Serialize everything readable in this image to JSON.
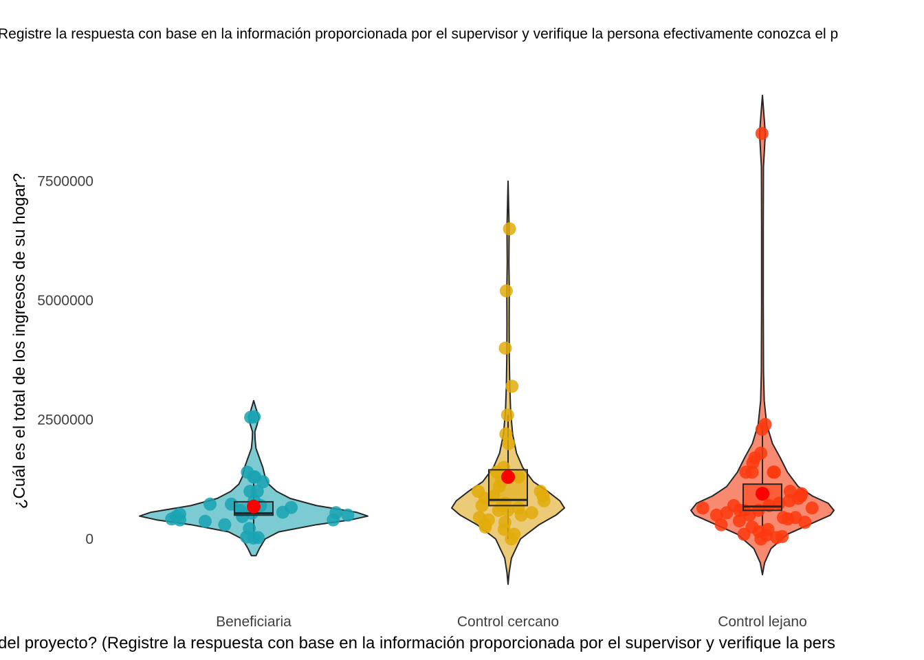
{
  "chart_data": {
    "type": "violin",
    "title": "Registre la respuesta con base en la información proporcionada por el supervisor y verifique la persona efectivamente conozca el p",
    "xlabel": "del proyecto? (Registre la respuesta con base en la información proporcionada por el supervisor y verifique la pers",
    "ylabel": "¿Cuál es el total de los ingresos de su hogar?",
    "ylim": [
      -1000000,
      9300000
    ],
    "y_ticks": [
      {
        "value": 0,
        "label": "0"
      },
      {
        "value": 2500000,
        "label": "2500000"
      },
      {
        "value": 5000000,
        "label": "5000000"
      },
      {
        "value": 7500000,
        "label": "7500000"
      }
    ],
    "grid": false,
    "legend": "none",
    "categories": [
      "Beneficiaria",
      "Control cercano",
      "Control lejano"
    ],
    "groups": [
      {
        "name": "Beneficiaria",
        "fill": "#7ccbd3",
        "point_color": "#1aa3b3",
        "mean": 680000,
        "box": {
          "q1": 500000,
          "median": 540000,
          "q3": 780000,
          "whisker_low": 0,
          "whisker_high": 1300000
        },
        "violin_range": [
          -350000,
          2900000
        ],
        "violin_profile": [
          [
            -350000,
            0.02
          ],
          [
            -200000,
            0.05
          ],
          [
            0,
            0.1
          ],
          [
            150000,
            0.22
          ],
          [
            300000,
            0.55
          ],
          [
            400000,
            0.85
          ],
          [
            480000,
            1.0
          ],
          [
            560000,
            0.9
          ],
          [
            700000,
            0.55
          ],
          [
            850000,
            0.32
          ],
          [
            1000000,
            0.2
          ],
          [
            1150000,
            0.13
          ],
          [
            1300000,
            0.1
          ],
          [
            1500000,
            0.08
          ],
          [
            1700000,
            0.05
          ],
          [
            1900000,
            0.02
          ],
          [
            2100000,
            0.012
          ],
          [
            2250000,
            0.01
          ],
          [
            2400000,
            0.03
          ],
          [
            2550000,
            0.045
          ],
          [
            2700000,
            0.025
          ],
          [
            2900000,
            0.0
          ]
        ],
        "points": [
          540000,
          700000,
          470000,
          300000,
          220000,
          800000,
          730000,
          1200000,
          1000000,
          1000000,
          730000,
          660000,
          560000,
          400000,
          20000,
          40000,
          30000,
          1400000,
          1300000,
          1300000,
          2550000,
          420000,
          550000,
          500000,
          520000,
          470000,
          400000,
          370000,
          600000,
          2560000
        ]
      },
      {
        "name": "Control cercano",
        "fill": "#eccb78",
        "point_color": "#e2ab0b",
        "mean": 1300000,
        "box": {
          "q1": 700000,
          "median": 820000,
          "q3": 1450000,
          "whisker_low": 0,
          "whisker_high": 2600000
        },
        "violin_range": [
          -950000,
          7500000
        ],
        "violin_profile": [
          [
            -950000,
            0.0
          ],
          [
            -700000,
            0.02
          ],
          [
            -400000,
            0.06
          ],
          [
            0,
            0.22
          ],
          [
            300000,
            0.55
          ],
          [
            500000,
            0.85
          ],
          [
            650000,
            1.0
          ],
          [
            800000,
            0.92
          ],
          [
            1000000,
            0.7
          ],
          [
            1200000,
            0.45
          ],
          [
            1500000,
            0.26
          ],
          [
            1800000,
            0.15
          ],
          [
            2200000,
            0.08
          ],
          [
            2700000,
            0.045
          ],
          [
            3200000,
            0.03
          ],
          [
            3800000,
            0.022
          ],
          [
            4500000,
            0.02
          ],
          [
            5200000,
            0.022
          ],
          [
            5800000,
            0.015
          ],
          [
            6500000,
            0.02
          ],
          [
            7000000,
            0.01
          ],
          [
            7500000,
            0.0
          ]
        ],
        "points": [
          6500000,
          5200000,
          4000000,
          3200000,
          2600000,
          2200000,
          2000000,
          1500000,
          1400000,
          1300000,
          1200000,
          1100000,
          1000000,
          900000,
          850000,
          800000,
          750000,
          700000,
          650000,
          600000,
          550000,
          500000,
          450000,
          400000,
          350000,
          300000,
          250000,
          200000,
          100000,
          0,
          1000000,
          900000,
          700000,
          600000
        ]
      },
      {
        "name": "Control lejano",
        "fill": "#f98a72",
        "point_color": "#fb3a0e",
        "mean": 950000,
        "box": {
          "q1": 600000,
          "median": 680000,
          "q3": 1150000,
          "whisker_low": 0,
          "whisker_high": 2400000
        },
        "violin_range": [
          -750000,
          9300000
        ],
        "violin_profile": [
          [
            -750000,
            0.0
          ],
          [
            -500000,
            0.03
          ],
          [
            -200000,
            0.12
          ],
          [
            100000,
            0.35
          ],
          [
            300000,
            0.65
          ],
          [
            500000,
            0.95
          ],
          [
            600000,
            1.0
          ],
          [
            750000,
            0.92
          ],
          [
            900000,
            0.7
          ],
          [
            1100000,
            0.5
          ],
          [
            1400000,
            0.35
          ],
          [
            1700000,
            0.25
          ],
          [
            2000000,
            0.14
          ],
          [
            2400000,
            0.06
          ],
          [
            2900000,
            0.025
          ],
          [
            3500000,
            0.015
          ],
          [
            5000000,
            0.012
          ],
          [
            6500000,
            0.012
          ],
          [
            7800000,
            0.014
          ],
          [
            8500000,
            0.04
          ],
          [
            9000000,
            0.015
          ],
          [
            9300000,
            0.0
          ]
        ],
        "points": [
          8500000,
          2400000,
          2300000,
          1800000,
          1700000,
          1600000,
          1400000,
          1400000,
          1400000,
          1400000,
          1000000,
          950000,
          900000,
          850000,
          800000,
          750000,
          700000,
          650000,
          600000,
          600000,
          550000,
          500000,
          450000,
          420000,
          380000,
          350000,
          300000,
          250000,
          200000,
          150000,
          100000,
          50000,
          0,
          30000,
          80000,
          600000,
          500000,
          450000,
          650000,
          700000
        ]
      }
    ],
    "mean_color": "#ff0000"
  }
}
